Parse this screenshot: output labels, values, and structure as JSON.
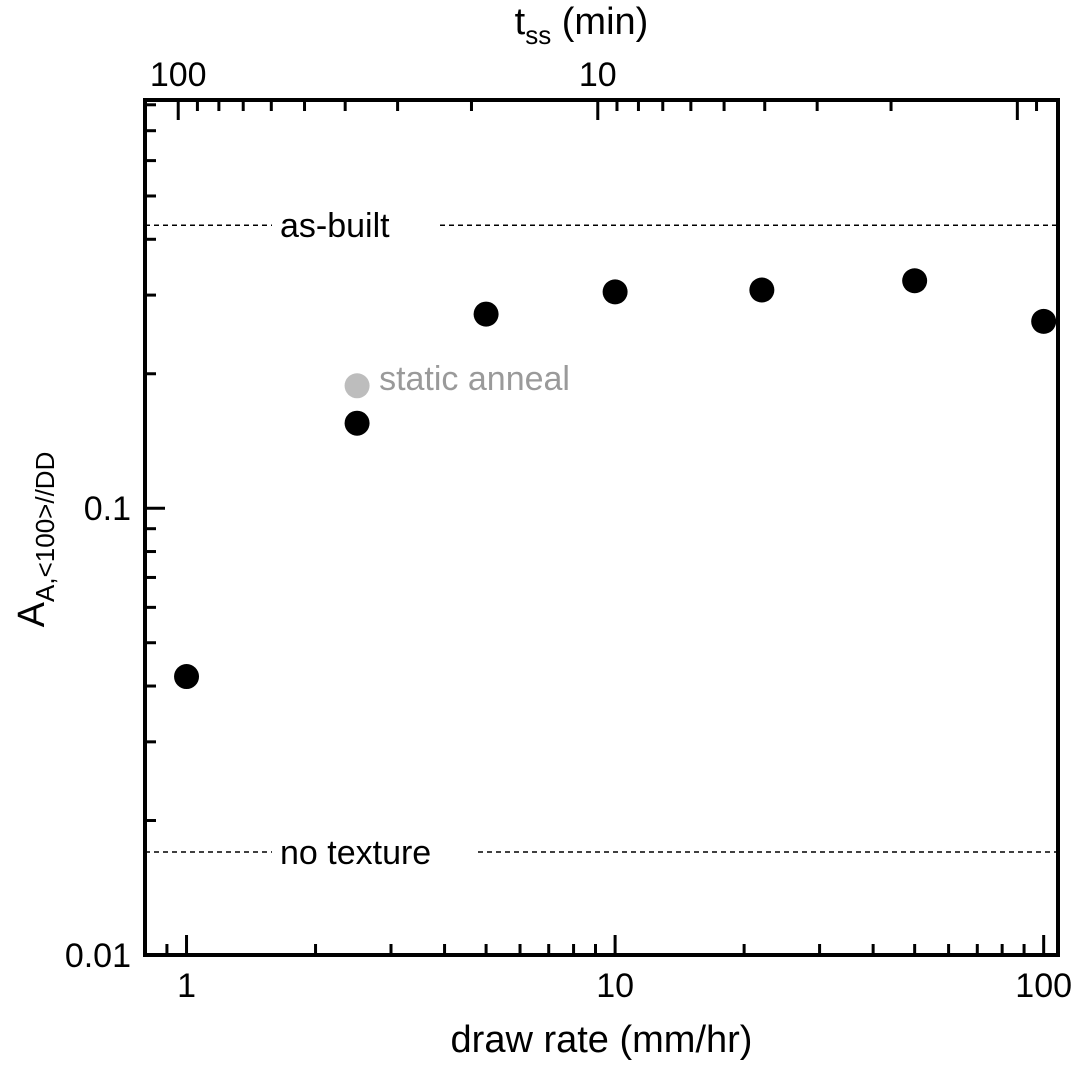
{
  "chart_data": {
    "type": "scatter",
    "xlabel": "draw rate (mm/hr)",
    "ylabel_main": "A",
    "ylabel_sub": "A,<100>//DD",
    "x2label_main": "t",
    "x2label_sub": "ss",
    "x2label_unit": "(min)",
    "x_scale": "log",
    "y_scale": "log",
    "x2_scale": "log",
    "xlim": [
      0.8,
      108
    ],
    "ylim": [
      0.01,
      0.82
    ],
    "x2lim": [
      120,
      0.8
    ],
    "x_ticks": [
      {
        "value": 1,
        "label": "1"
      },
      {
        "value": 10,
        "label": "10"
      },
      {
        "value": 100,
        "label": "100"
      }
    ],
    "y_ticks": [
      {
        "value": 0.01,
        "label": "0.01"
      },
      {
        "value": 0.1,
        "label": "0.1"
      }
    ],
    "x2_ticks": [
      {
        "value": 100,
        "label": "100"
      },
      {
        "value": 10,
        "label": "10"
      }
    ],
    "series": [
      {
        "color": "#000000",
        "points": [
          {
            "x": 1,
            "y": 0.042
          },
          {
            "x": 2.5,
            "y": 0.155
          },
          {
            "x": 5,
            "y": 0.272
          },
          {
            "x": 10,
            "y": 0.305
          },
          {
            "x": 22,
            "y": 0.308
          },
          {
            "x": 50,
            "y": 0.323
          },
          {
            "x": 100,
            "y": 0.262
          }
        ]
      },
      {
        "color": "#bdbdbd",
        "points": [
          {
            "x": 2.5,
            "y": 0.188
          }
        ]
      }
    ],
    "annotations": [
      {
        "text": "static anneal",
        "x": 2.5,
        "y": 0.188,
        "color": "#9a9a9a"
      }
    ],
    "reference_lines": [
      {
        "label": "as-built",
        "y": 0.43
      },
      {
        "label": "no texture",
        "y": 0.017
      }
    ],
    "grid": false
  }
}
